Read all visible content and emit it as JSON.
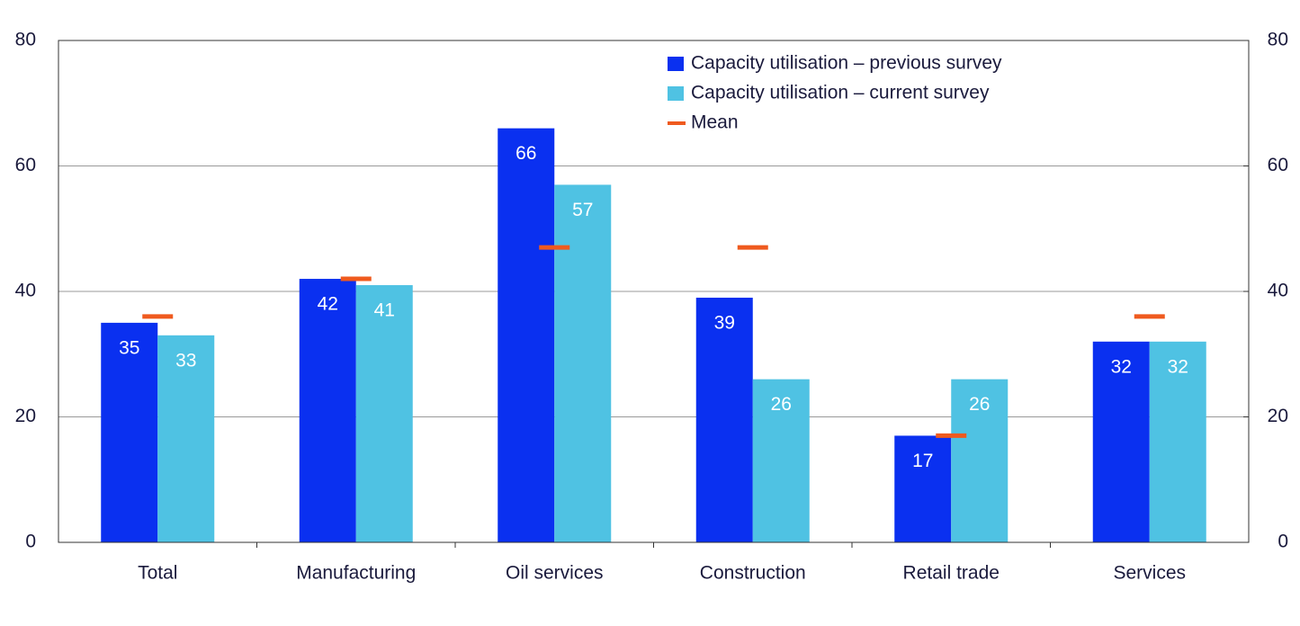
{
  "chart_data": {
    "type": "bar",
    "categories": [
      "Total",
      "Manufacturing",
      "Oil services",
      "Construction",
      "Retail trade",
      "Services"
    ],
    "series": [
      {
        "name": "Capacity utilisation – previous survey",
        "color": "#0a30f0",
        "values": [
          35,
          42,
          66,
          39,
          17,
          32
        ]
      },
      {
        "name": "Capacity utilisation – current survey",
        "color": "#4fc2e3",
        "values": [
          33,
          41,
          57,
          26,
          26,
          32
        ]
      },
      {
        "name": "Mean",
        "color": "#ef5a1e",
        "mark": "dash",
        "values": [
          36,
          42,
          47,
          47,
          17,
          36
        ]
      }
    ],
    "ylim": [
      0,
      80
    ],
    "yticks": [
      0,
      20,
      40,
      60,
      80
    ],
    "y2lim": [
      0,
      80
    ],
    "y2ticks": [
      0,
      20,
      40,
      60,
      80
    ],
    "grid": true,
    "legend": "top-right"
  }
}
